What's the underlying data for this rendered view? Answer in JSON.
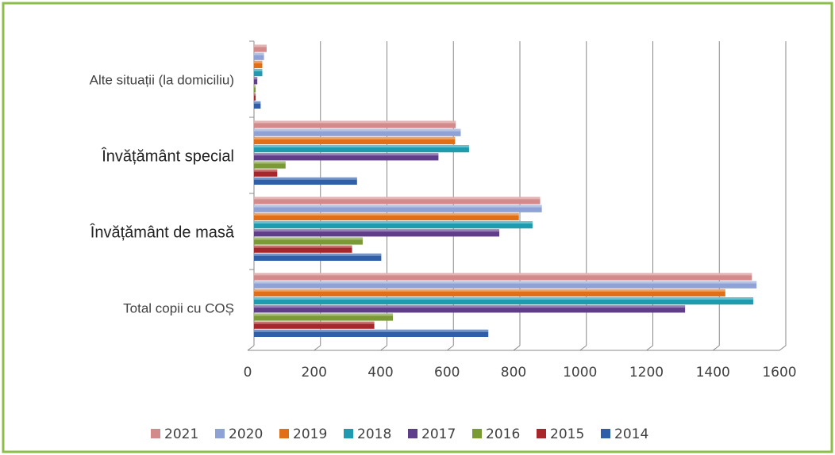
{
  "chart_data": {
    "type": "bar",
    "orientation": "horizontal",
    "categories": [
      "Total copii cu COȘ",
      "Învățământ de masă",
      "Învățământ special",
      "Alte situații (la domiciliu)"
    ],
    "series": [
      {
        "name": "2014",
        "color": "#2e5fa8",
        "values": [
          705,
          383,
          310,
          20
        ]
      },
      {
        "name": "2015",
        "color": "#a8262a",
        "values": [
          362,
          295,
          70,
          5
        ]
      },
      {
        "name": "2016",
        "color": "#7a9a34",
        "values": [
          418,
          327,
          95,
          5
        ]
      },
      {
        "name": "2017",
        "color": "#5e3d8a",
        "values": [
          1297,
          738,
          555,
          10
        ]
      },
      {
        "name": "2018",
        "color": "#1f9ab0",
        "values": [
          1502,
          838,
          647,
          25
        ]
      },
      {
        "name": "2019",
        "color": "#e06f16",
        "values": [
          1418,
          797,
          605,
          25
        ]
      },
      {
        "name": "2020",
        "color": "#8ea2d6",
        "values": [
          1512,
          866,
          622,
          30
        ]
      },
      {
        "name": "2021",
        "color": "#d28a8a",
        "values": [
          1498,
          861,
          607,
          38
        ]
      }
    ],
    "xlim": [
      0,
      1600
    ],
    "xticks": [
      0,
      200,
      400,
      600,
      800,
      1000,
      1200,
      1400,
      1600
    ],
    "grid": true,
    "legend": "bottom"
  }
}
